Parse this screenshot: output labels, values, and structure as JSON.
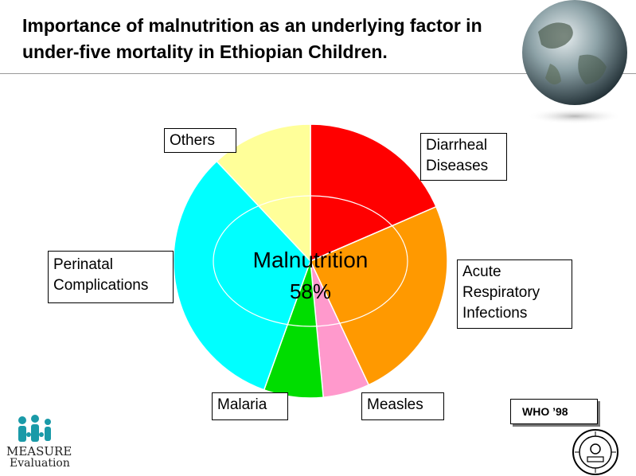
{
  "title": "Importance of malnutrition as an underlying factor in under-five mortality in Ethiopian Children.",
  "chart_data": {
    "type": "pie",
    "center_label": "Malnutrition",
    "center_value": "58%",
    "slices": [
      {
        "label": "Diarrheal Diseases",
        "value": 18.5,
        "color": "#ff0000"
      },
      {
        "label": "Acute Respiratory Infections",
        "value": 24.5,
        "color": "#ff9900"
      },
      {
        "label": "Measles",
        "value": 5.5,
        "color": "#ff99cc"
      },
      {
        "label": "Malaria",
        "value": 7.0,
        "color": "#00dd00"
      },
      {
        "label": "Perinatal Complications",
        "value": 32.5,
        "color": "#00ffff"
      },
      {
        "label": "Others",
        "value": 12.0,
        "color": "#ffff99"
      }
    ]
  },
  "labels": {
    "others": "Others",
    "diarrheal_1": "Diarrheal",
    "diarrheal_2": "Diseases",
    "ari_1": "Acute",
    "ari_2": "Respiratory",
    "ari_3": "Infections",
    "measles": "Measles",
    "malaria": "Malaria",
    "perinatal_1": "Perinatal",
    "perinatal_2": "Complications"
  },
  "source": "WHO ’98",
  "logo": {
    "line1": "MEASURE",
    "line2": "Evaluation"
  }
}
